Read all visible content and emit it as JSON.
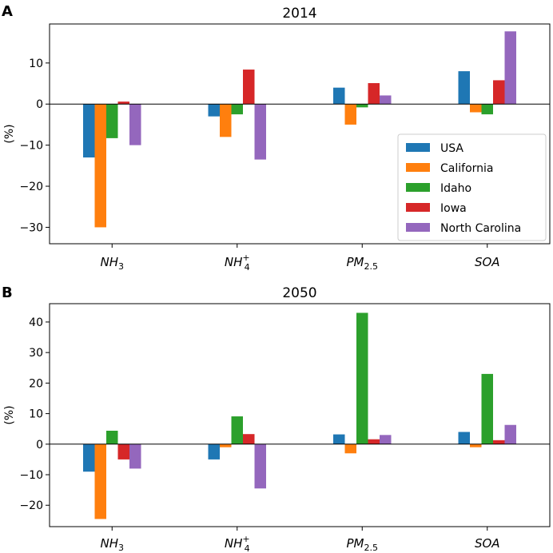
{
  "chart_data": [
    {
      "type": "bar",
      "panel_label": "A",
      "title": "2014",
      "ylabel": "(%)",
      "ylim": [
        -34,
        19.5
      ],
      "yticks": [
        -30,
        -20,
        -10,
        0,
        10
      ],
      "ytick_labels": [
        "−30",
        "−20",
        "−10",
        "0",
        "10"
      ],
      "categories": [
        {
          "base": "NH",
          "sub": "3",
          "sup": ""
        },
        {
          "base": "NH",
          "sub": "4",
          "sup": "+"
        },
        {
          "base": "PM",
          "sub": "2.5",
          "sup": ""
        },
        {
          "base": "SOA",
          "sub": "",
          "sup": ""
        }
      ],
      "series": [
        {
          "name": "USA",
          "color": "#1f77b4",
          "values": [
            -13,
            -3,
            4,
            8
          ]
        },
        {
          "name": "California",
          "color": "#ff7f0e",
          "values": [
            -30,
            -8,
            -5,
            -2
          ]
        },
        {
          "name": "Idaho",
          "color": "#2ca02c",
          "values": [
            -8.3,
            -2.5,
            -0.8,
            -2.5
          ]
        },
        {
          "name": "Iowa",
          "color": "#d62728",
          "values": [
            0.6,
            8.4,
            5.1,
            5.8
          ]
        },
        {
          "name": "North Carolina",
          "color": "#9467bd",
          "values": [
            -10,
            -13.5,
            2.1,
            17.7
          ]
        }
      ],
      "legend": "right"
    },
    {
      "type": "bar",
      "panel_label": "B",
      "title": "2050",
      "ylabel": "(%)",
      "ylim": [
        -27,
        46
      ],
      "yticks": [
        -20,
        -10,
        0,
        10,
        20,
        30,
        40
      ],
      "ytick_labels": [
        "−20",
        "−10",
        "0",
        "10",
        "20",
        "30",
        "40"
      ],
      "categories": [
        {
          "base": "NH",
          "sub": "3",
          "sup": ""
        },
        {
          "base": "NH",
          "sub": "4",
          "sup": "+"
        },
        {
          "base": "PM",
          "sub": "2.5",
          "sup": ""
        },
        {
          "base": "SOA",
          "sub": "",
          "sup": ""
        }
      ],
      "series": [
        {
          "name": "USA",
          "color": "#1f77b4",
          "values": [
            -9,
            -5,
            3.2,
            4
          ]
        },
        {
          "name": "California",
          "color": "#ff7f0e",
          "values": [
            -24.5,
            -1,
            -3,
            -1
          ]
        },
        {
          "name": "Idaho",
          "color": "#2ca02c",
          "values": [
            4.4,
            9.1,
            43,
            23
          ]
        },
        {
          "name": "Iowa",
          "color": "#d62728",
          "values": [
            -5,
            3.3,
            1.6,
            1.3
          ]
        },
        {
          "name": "North Carolina",
          "color": "#9467bd",
          "values": [
            -8,
            -14.5,
            3,
            6.3
          ]
        }
      ],
      "legend": "none"
    }
  ]
}
